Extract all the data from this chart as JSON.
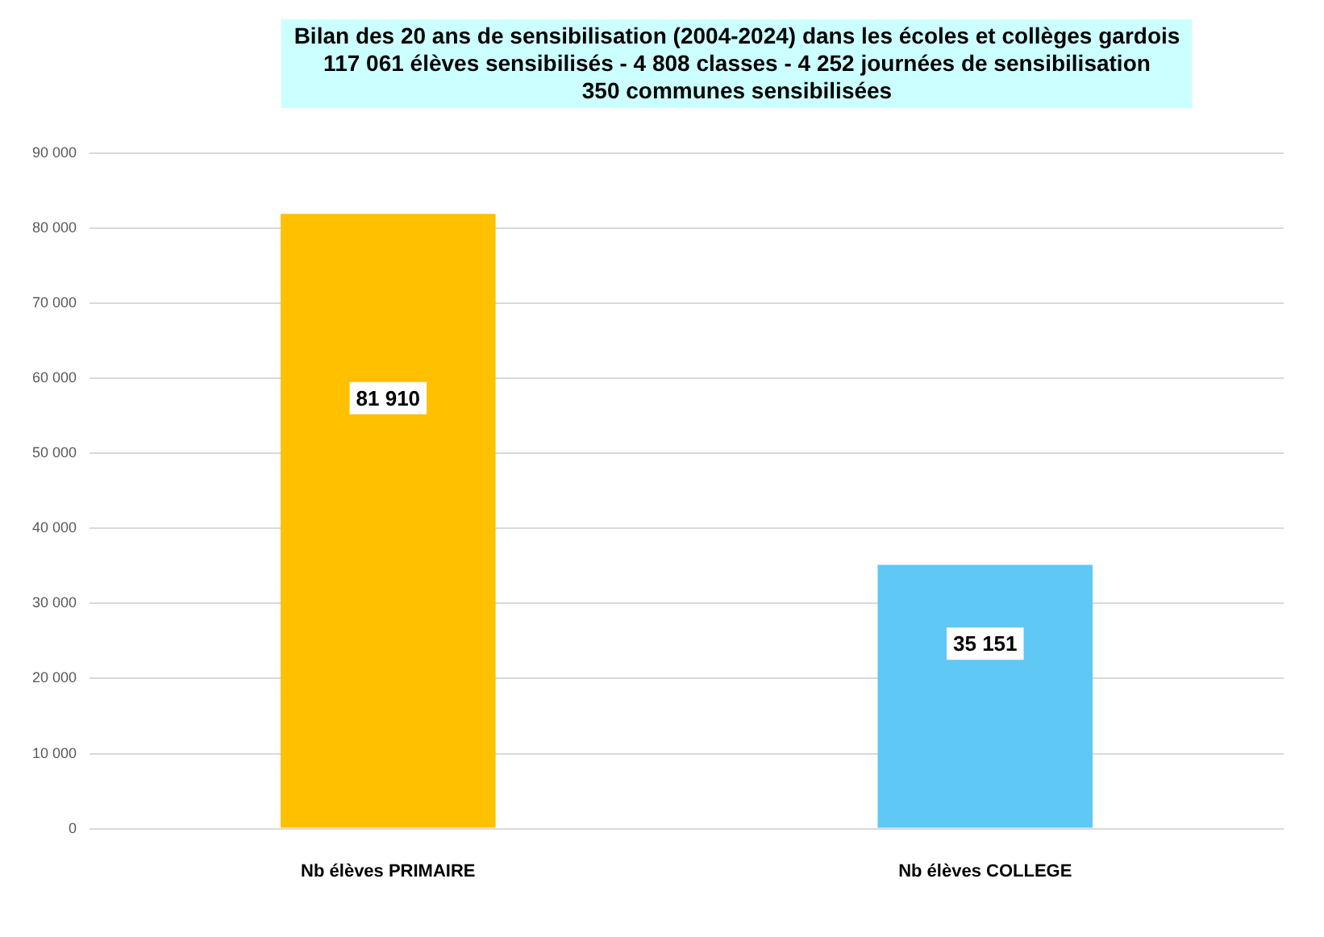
{
  "chart_data": {
    "type": "bar",
    "title": "Bilan des 20 ans de sensibilisation (2004-2024) dans les écoles et collèges gardois\n117 061 élèves sensibilisés - 4 808 classes - 4 252 journées de sensibilisation\n350 communes sensibilisées",
    "categories": [
      "Nb élèves PRIMAIRE",
      "Nb élèves COLLEGE"
    ],
    "values": [
      81910,
      35151
    ],
    "colors": [
      "#ffc000",
      "#5fc8f5"
    ],
    "value_labels": [
      "81 910",
      "35 151"
    ],
    "ylim": [
      0,
      90000
    ],
    "yticks": [
      0,
      {
        "value": 10000,
        "label": "10 000"
      },
      {
        "value": 20000,
        "label": "20 000"
      },
      {
        "value": 30000,
        "label": "30 000"
      },
      {
        "value": 40000,
        "label": "40 000"
      },
      {
        "value": 50000,
        "label": "50 000"
      },
      {
        "value": 60000,
        "label": "60 000"
      },
      {
        "value": 70000,
        "label": "70 000"
      },
      {
        "value": 80000,
        "label": "80 000"
      },
      {
        "value": 90000,
        "label": "90 000"
      }
    ],
    "grid": "y"
  }
}
